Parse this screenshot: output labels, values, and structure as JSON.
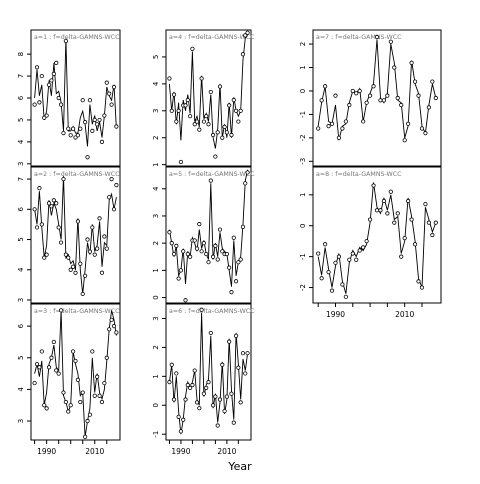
{
  "figure": {
    "xlabel": "Year",
    "x_tick_labels": [
      "1990",
      "2010"
    ]
  },
  "chart_data": [
    {
      "type": "line",
      "panel": "a=1",
      "label": "a=1 : f=delta-GAMNS-WCC",
      "ylim": [
        2.9,
        9.1
      ],
      "yticks": [
        3,
        4,
        5,
        6,
        7,
        8
      ],
      "x": [
        1985,
        1986,
        1987,
        1988,
        1989,
        1990,
        1991,
        1992,
        1993,
        1994,
        1995,
        1996,
        1997,
        1998,
        1999,
        2000,
        2001,
        2002,
        2003,
        2004,
        2005,
        2006,
        2007,
        2008,
        2009,
        2010,
        2011,
        2012,
        2013,
        2014,
        2015,
        2016,
        2017,
        2018,
        2019
      ],
      "y_line": [
        6.0,
        7.3,
        6.1,
        6.6,
        5.0,
        5.4,
        6.8,
        6.1,
        7.6,
        6.2,
        6.3,
        5.8,
        4.5,
        8.7,
        4.5,
        4.5,
        4.7,
        4.4,
        4.4,
        5.1,
        5.4,
        4.8,
        3.8,
        5.7,
        4.8,
        5.2,
        4.5,
        4.9,
        4.2,
        5.2,
        6.5,
        6.1,
        5.9,
        6.6,
        4.6
      ],
      "y_points": [
        5.7,
        7.4,
        5.8,
        7.0,
        5.1,
        5.2,
        6.6,
        6.8,
        7.1,
        7.6,
        6.0,
        5.7,
        4.4,
        8.6,
        4.6,
        4.3,
        4.6,
        4.2,
        4.3,
        4.6,
        5.9,
        4.9,
        3.3,
        5.9,
        4.5,
        5.0,
        4.8,
        5.0,
        4.0,
        5.2,
        6.7,
        6.2,
        5.7,
        6.5,
        4.7
      ]
    },
    {
      "type": "line",
      "panel": "a=2",
      "label": "a=2 : f=delta-GAMNS-WCC",
      "ylim": [
        2.9,
        7.4
      ],
      "yticks": [
        3,
        4,
        5,
        6,
        7
      ],
      "x": [
        1985,
        1986,
        1987,
        1988,
        1989,
        1990,
        1991,
        1992,
        1993,
        1994,
        1995,
        1996,
        1997,
        1998,
        1999,
        2000,
        2001,
        2002,
        2003,
        2004,
        2005,
        2006,
        2007,
        2008,
        2009,
        2010,
        2011,
        2012,
        2013,
        2014,
        2015,
        2016,
        2017,
        2018,
        2019
      ],
      "y_line": [
        6.0,
        5.5,
        6.6,
        5.4,
        4.4,
        4.8,
        6.3,
        5.8,
        6.2,
        6.0,
        5.5,
        5.0,
        7.1,
        4.4,
        4.5,
        4.2,
        4.3,
        4.0,
        5.7,
        4.0,
        3.2,
        4.0,
        4.9,
        4.5,
        5.5,
        4.6,
        4.8,
        5.6,
        4.1,
        4.9,
        4.8,
        6.3,
        6.5,
        6.0,
        6.4
      ],
      "y_points": [
        6.0,
        5.4,
        6.7,
        5.5,
        4.4,
        4.5,
        6.2,
        6.1,
        6.3,
        6.2,
        5.4,
        4.9,
        7.0,
        4.5,
        4.4,
        4.0,
        4.1,
        3.9,
        5.6,
        4.2,
        3.2,
        3.8,
        5.0,
        4.6,
        5.4,
        4.5,
        4.7,
        5.7,
        3.9,
        5.1,
        4.7,
        6.4,
        7.0,
        6.0,
        6.8
      ]
    },
    {
      "type": "line",
      "panel": "a=3",
      "label": "a=3 : f=delta-GAMNS-WCC",
      "ylim": [
        2.4,
        6.7
      ],
      "yticks": [
        3,
        4,
        5,
        6
      ],
      "x": [
        1985,
        1986,
        1987,
        1988,
        1989,
        1990,
        1991,
        1992,
        1993,
        1994,
        1995,
        1996,
        1997,
        1998,
        1999,
        2000,
        2001,
        2002,
        2003,
        2004,
        2005,
        2006,
        2007,
        2008,
        2009,
        2010,
        2011,
        2012,
        2013,
        2014,
        2015,
        2016,
        2017,
        2018,
        2019
      ],
      "y_line": [
        4.5,
        4.8,
        4.4,
        4.9,
        3.5,
        3.9,
        4.8,
        5.0,
        5.4,
        4.7,
        4.6,
        6.5,
        3.8,
        3.6,
        3.3,
        3.5,
        5.2,
        4.8,
        4.5,
        3.8,
        3.9,
        2.5,
        3.0,
        3.4,
        5.0,
        3.9,
        4.5,
        3.9,
        3.7,
        4.0,
        4.9,
        5.9,
        6.5,
        6.2,
        5.7
      ],
      "y_points": [
        4.2,
        4.8,
        4.7,
        5.2,
        3.5,
        3.4,
        4.7,
        5.0,
        5.5,
        4.6,
        4.5,
        6.5,
        3.9,
        3.6,
        3.3,
        3.5,
        5.2,
        4.9,
        4.3,
        3.6,
        3.9,
        2.5,
        3.0,
        3.2,
        5.2,
        3.8,
        4.4,
        3.8,
        3.6,
        4.2,
        5.0,
        5.9,
        6.2,
        6.0,
        5.8
      ]
    },
    {
      "type": "line",
      "panel": "a=4",
      "label": "a=4 : f=delta-GAMNS-WCC",
      "ylim": [
        0.95,
        6.0
      ],
      "yticks": [
        1,
        2,
        3,
        4,
        5
      ],
      "x": [
        1985,
        1986,
        1987,
        1988,
        1989,
        1990,
        1991,
        1992,
        1993,
        1994,
        1995,
        1996,
        1997,
        1998,
        1999,
        2000,
        2001,
        2002,
        2003,
        2004,
        2005,
        2006,
        2007,
        2008,
        2009,
        2010,
        2011,
        2012,
        2013,
        2014,
        2015,
        2016,
        2017,
        2018,
        2019
      ],
      "y_line": [
        4.0,
        3.0,
        3.7,
        2.5,
        3.3,
        1.9,
        3.4,
        3.0,
        3.6,
        2.9,
        5.2,
        2.6,
        2.8,
        2.4,
        4.3,
        2.7,
        2.9,
        2.6,
        3.6,
        2.0,
        1.6,
        2.3,
        4.0,
        2.0,
        2.5,
        2.0,
        3.3,
        2.0,
        3.5,
        3.0,
        2.8,
        3.0,
        4.9,
        5.7,
        5.8
      ],
      "y_points": [
        4.2,
        3.0,
        3.6,
        2.6,
        3.0,
        1.1,
        3.2,
        3.2,
        3.4,
        2.8,
        5.3,
        2.5,
        2.6,
        2.3,
        4.2,
        2.6,
        2.8,
        2.5,
        3.7,
        2.1,
        1.3,
        2.2,
        3.9,
        2.0,
        2.4,
        2.2,
        3.2,
        2.1,
        3.4,
        3.0,
        2.6,
        3.0,
        5.1,
        5.8,
        5.9
      ]
    },
    {
      "type": "line",
      "panel": "a=5",
      "label": "a=5 : f=delta-GAMNS-WCC",
      "ylim": [
        -0.2,
        4.8
      ],
      "yticks": [
        0,
        1,
        2,
        3,
        4
      ],
      "x": [
        1985,
        1986,
        1987,
        1988,
        1989,
        1990,
        1991,
        1992,
        1993,
        1994,
        1995,
        1996,
        1997,
        1998,
        1999,
        2000,
        2001,
        2002,
        2003,
        2004,
        2005,
        2006,
        2007,
        2008,
        2009,
        2010,
        2011,
        2012,
        2013,
        2014,
        2015,
        2016,
        2017,
        2018,
        2019
      ],
      "y_line": [
        2.5,
        2.0,
        1.5,
        1.9,
        0.8,
        1.0,
        1.8,
        0.5,
        1.7,
        1.5,
        2.2,
        2.0,
        1.7,
        2.5,
        1.8,
        2.1,
        1.6,
        1.4,
        4.2,
        1.4,
        2.0,
        1.5,
        2.4,
        1.8,
        1.7,
        1.6,
        1.0,
        0.4,
        2.1,
        0.8,
        1.3,
        1.5,
        2.7,
        4.3,
        4.7
      ],
      "y_points": [
        2.4,
        2.0,
        1.6,
        1.9,
        0.7,
        1.0,
        1.7,
        -0.1,
        1.6,
        1.5,
        2.1,
        2.1,
        1.8,
        2.7,
        1.7,
        2.0,
        1.6,
        1.3,
        4.3,
        1.5,
        1.9,
        1.4,
        2.5,
        1.7,
        1.6,
        1.6,
        1.1,
        0.2,
        2.2,
        0.6,
        1.3,
        1.4,
        2.6,
        4.2,
        4.6
      ]
    },
    {
      "type": "line",
      "panel": "a=6",
      "label": "a=6 : f=delta-GAMNS-WCC",
      "ylim": [
        -1.2,
        3.5
      ],
      "yticks": [
        -1,
        0,
        1,
        2,
        3
      ],
      "x": [
        1985,
        1986,
        1987,
        1988,
        1989,
        1990,
        1991,
        1992,
        1993,
        1994,
        1995,
        1996,
        1997,
        1998,
        1999,
        2000,
        2001,
        2002,
        2003,
        2004,
        2005,
        2006,
        2007,
        2008,
        2009,
        2010,
        2011,
        2012,
        2013,
        2014,
        2015,
        2016,
        2017,
        2018,
        2019
      ],
      "y_line": [
        0.8,
        1.4,
        0.1,
        1.0,
        -0.2,
        -1.0,
        -0.5,
        0.3,
        0.8,
        0.6,
        0.8,
        1.2,
        0.2,
        0.0,
        3.2,
        0.3,
        0.7,
        0.9,
        2.4,
        -0.1,
        0.4,
        -0.6,
        0.1,
        1.5,
        -0.3,
        0.2,
        2.3,
        0.5,
        -0.5,
        2.5,
        1.4,
        0.2,
        1.6,
        1.2,
        1.8
      ],
      "y_points": [
        0.8,
        1.4,
        0.2,
        1.1,
        -0.4,
        -0.9,
        -0.5,
        0.2,
        0.7,
        0.6,
        0.7,
        1.2,
        0.1,
        -0.1,
        3.3,
        0.4,
        0.6,
        0.8,
        2.5,
        0.0,
        0.3,
        -0.7,
        0.2,
        1.4,
        -0.2,
        0.3,
        2.2,
        0.4,
        -0.6,
        2.4,
        1.3,
        0.1,
        1.8,
        1.1,
        1.8
      ]
    },
    {
      "type": "line",
      "panel": "a=7",
      "label": "a=7 : f=delta-GAMNS-WCC",
      "ylim": [
        -3.2,
        2.6
      ],
      "yticks": [
        -3,
        -2,
        -1,
        0,
        1,
        2
      ],
      "x": [
        1985,
        1986,
        1987,
        1988,
        1989,
        1990,
        1991,
        1992,
        1993,
        1994,
        1995,
        1996,
        1997,
        1998,
        1999,
        2000,
        2001,
        2002,
        2003,
        2004,
        2005,
        2006,
        2007,
        2008,
        2009,
        2010,
        2011,
        2012,
        2013,
        2014,
        2015,
        2016,
        2017,
        2018,
        2019
      ],
      "y_line": [
        -1.5,
        -0.5,
        0.2,
        -1.3,
        -1.4,
        -0.6,
        -2.1,
        -1.5,
        -1.4,
        -0.5,
        0.0,
        -0.1,
        0.1,
        -1.3,
        -0.5,
        -0.1,
        0.3,
        2.2,
        -0.3,
        -0.5,
        -0.1,
        2.0,
        1.2,
        -0.4,
        -0.5,
        -2.0,
        -1.5,
        1.3,
        0.3,
        -0.1,
        -1.5,
        -1.8,
        -0.6,
        0.3,
        -0.3
      ],
      "y_points": [
        -1.6,
        -0.4,
        0.2,
        -1.5,
        -1.4,
        -0.2,
        -2.0,
        -1.6,
        -1.3,
        -0.6,
        0.0,
        -0.1,
        0.0,
        -1.3,
        -0.5,
        -0.2,
        0.2,
        2.3,
        -0.4,
        -0.4,
        -0.2,
        2.1,
        1.0,
        -0.3,
        -0.6,
        -2.1,
        -1.4,
        1.2,
        0.4,
        -0.2,
        -1.6,
        -1.8,
        -0.7,
        0.4,
        -0.3
      ]
    },
    {
      "type": "line",
      "panel": "a=8",
      "label": "a=8 : f=delta-GAMNS-WCC",
      "ylim": [
        -2.5,
        1.9
      ],
      "yticks": [
        -2,
        -1,
        0,
        1
      ],
      "x": [
        1985,
        1986,
        1987,
        1988,
        1989,
        1990,
        1991,
        1992,
        1993,
        1994,
        1995,
        1996,
        1997,
        1998,
        1999,
        2000,
        2001,
        2002,
        2003,
        2004,
        2005,
        2006,
        2007,
        2008,
        2009,
        2010,
        2011,
        2012,
        2013,
        2014,
        2015,
        2016,
        2017,
        2018,
        2019
      ],
      "y_line": [
        -1.0,
        -1.6,
        -0.7,
        -1.4,
        -2.0,
        -1.3,
        -0.9,
        -1.8,
        -2.2,
        -1.2,
        -0.8,
        -1.0,
        -0.7,
        -0.8,
        -0.6,
        0.1,
        1.4,
        0.6,
        0.4,
        0.9,
        0.5,
        1.0,
        0.2,
        0.3,
        -0.9,
        -0.5,
        0.9,
        0.3,
        -0.5,
        -1.7,
        -2.0,
        0.6,
        0.2,
        -0.2,
        0.1
      ],
      "y_points": [
        -0.9,
        -1.7,
        -0.6,
        -1.5,
        -2.1,
        -1.2,
        -1.0,
        -1.9,
        -2.3,
        -1.1,
        -0.9,
        -1.1,
        -0.8,
        -0.7,
        -0.5,
        0.2,
        1.3,
        0.5,
        0.5,
        0.8,
        0.4,
        1.1,
        0.1,
        0.4,
        -1.0,
        -0.4,
        0.8,
        0.2,
        -0.6,
        -1.8,
        -2.0,
        0.7,
        0.1,
        -0.3,
        0.1
      ]
    }
  ]
}
